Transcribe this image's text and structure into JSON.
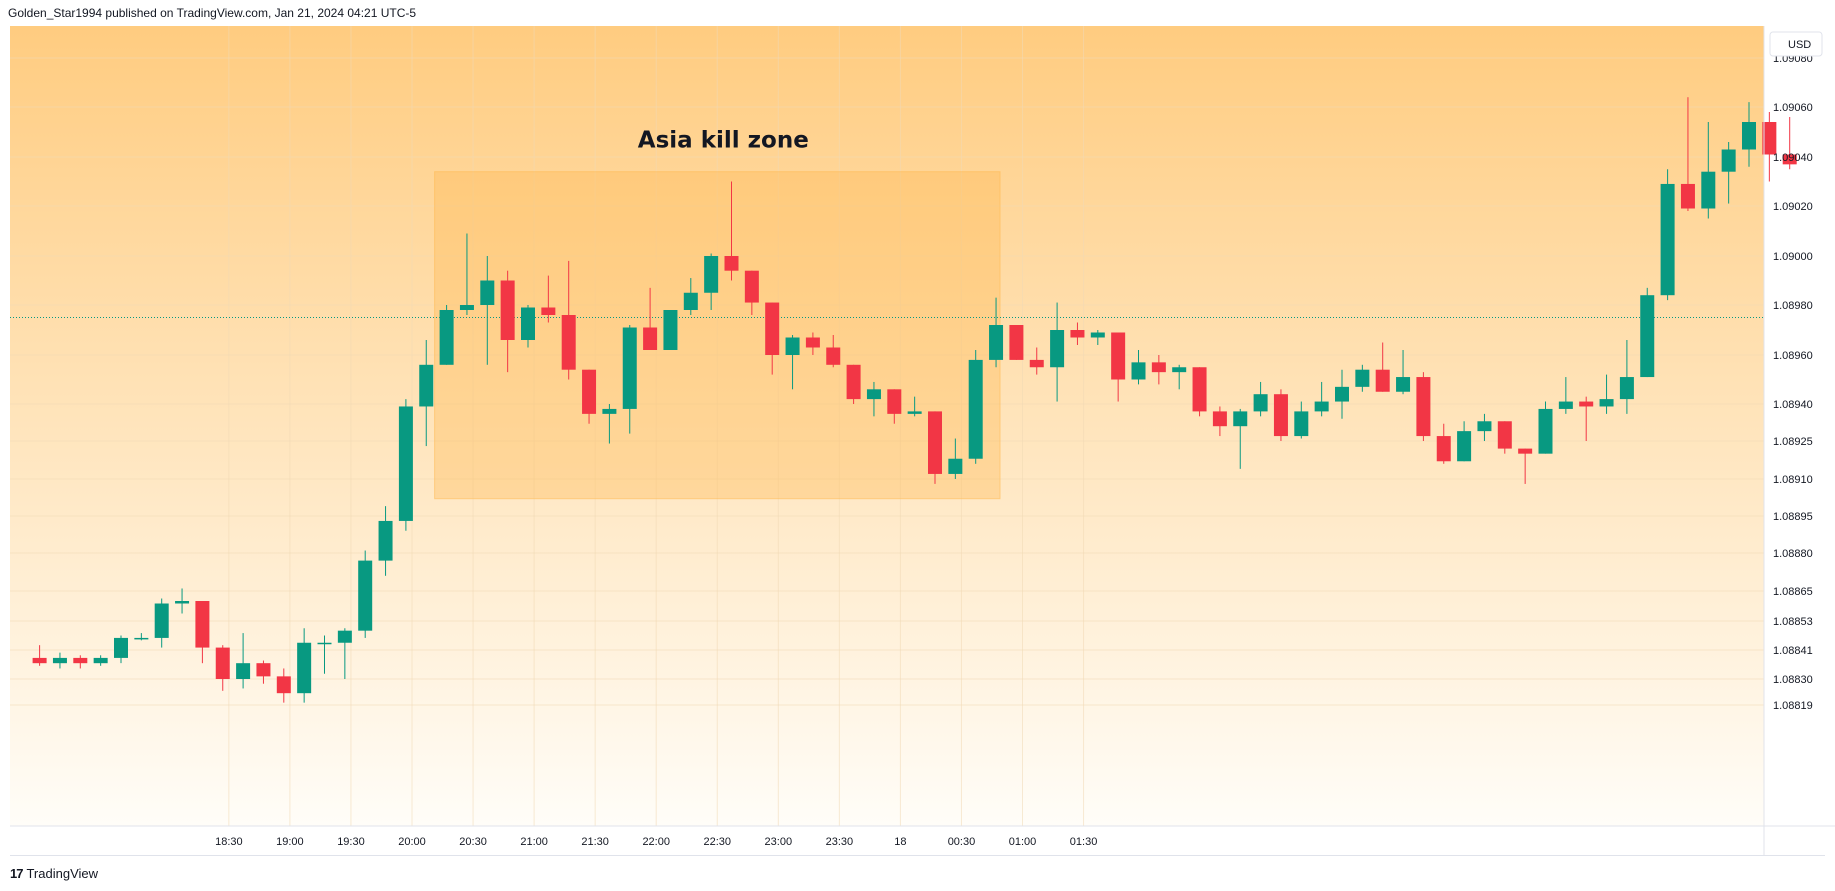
{
  "header": {
    "text": "Golden_Star1994 published on TradingView.com, Jan 21, 2024 04:21 UTC-5"
  },
  "footer": {
    "logo": "17",
    "brand": "TradingView"
  },
  "colors": {
    "up": "#089981",
    "down": "#f23645",
    "zone": "#ffb74d",
    "bg_top": "#ffcc80",
    "bg_bottom": "#fffdf8"
  },
  "chart_data": {
    "type": "candlestick",
    "title": "",
    "currency": "USD",
    "annotation": {
      "text": "Asia kill zone",
      "zone_start": 1,
      "zone_end": 28,
      "price_high": 1.09034,
      "price_low": 1.08902
    },
    "reference_line": 1.08975,
    "y_ticks": [
      "1.09080",
      "1.09060",
      "1.09040",
      "1.09020",
      "1.09000",
      "1.08980",
      "1.08960",
      "1.08940",
      "1.08925",
      "1.08910",
      "1.08895",
      "1.08880",
      "1.08865",
      "1.08853",
      "1.08841",
      "1.08830",
      "1.08819"
    ],
    "x_ticks": [
      {
        "label": "18:30",
        "i": -9.7
      },
      {
        "label": "19:00",
        "i": -6.7
      },
      {
        "label": "19:30",
        "i": -3.7
      },
      {
        "label": "20:00",
        "i": -0.7
      },
      {
        "label": "20:30",
        "i": 2.3
      },
      {
        "label": "21:00",
        "i": 5.3
      },
      {
        "label": "21:30",
        "i": 8.3
      },
      {
        "label": "22:00",
        "i": 11.3
      },
      {
        "label": "22:30",
        "i": 14.3
      },
      {
        "label": "23:00",
        "i": 17.3
      },
      {
        "label": "23:30",
        "i": 20.3
      },
      {
        "label": "18",
        "i": 23.3
      },
      {
        "label": "00:30",
        "i": 26.3
      },
      {
        "label": "01:00",
        "i": 29.3
      },
      {
        "label": "01:30",
        "i": 32.3
      }
    ],
    "candles": [
      {
        "o": 1.08838,
        "h": 1.08843,
        "l": 1.08835,
        "c": 1.08836
      },
      {
        "o": 1.08836,
        "h": 1.0884,
        "l": 1.08834,
        "c": 1.08838
      },
      {
        "o": 1.08838,
        "h": 1.08839,
        "l": 1.08834,
        "c": 1.08836
      },
      {
        "o": 1.08836,
        "h": 1.08839,
        "l": 1.08835,
        "c": 1.08838
      },
      {
        "o": 1.08838,
        "h": 1.08847,
        "l": 1.08836,
        "c": 1.08846
      },
      {
        "o": 1.08846,
        "h": 1.08848,
        "l": 1.08845,
        "c": 1.08846
      },
      {
        "o": 1.08846,
        "h": 1.08862,
        "l": 1.08842,
        "c": 1.0886
      },
      {
        "o": 1.0886,
        "h": 1.08866,
        "l": 1.08856,
        "c": 1.08861
      },
      {
        "o": 1.08861,
        "h": 1.08861,
        "l": 1.08836,
        "c": 1.08842
      },
      {
        "o": 1.08842,
        "h": 1.08843,
        "l": 1.08825,
        "c": 1.0883
      },
      {
        "o": 1.0883,
        "h": 1.08848,
        "l": 1.08826,
        "c": 1.08836
      },
      {
        "o": 1.08836,
        "h": 1.08837,
        "l": 1.08828,
        "c": 1.08831
      },
      {
        "o": 1.08831,
        "h": 1.08834,
        "l": 1.0882,
        "c": 1.08824
      },
      {
        "o": 1.08824,
        "h": 1.0885,
        "l": 1.0882,
        "c": 1.08844
      },
      {
        "o": 1.08844,
        "h": 1.08847,
        "l": 1.08832,
        "c": 1.08844
      },
      {
        "o": 1.08844,
        "h": 1.0885,
        "l": 1.0883,
        "c": 1.08849
      },
      {
        "o": 1.08849,
        "h": 1.08881,
        "l": 1.08846,
        "c": 1.08877
      },
      {
        "o": 1.08877,
        "h": 1.08899,
        "l": 1.08871,
        "c": 1.08893
      },
      {
        "o": 1.08893,
        "h": 1.08942,
        "l": 1.08889,
        "c": 1.08939
      },
      {
        "o": 1.08939,
        "h": 1.08966,
        "l": 1.08923,
        "c": 1.08956
      },
      {
        "o": 1.08956,
        "h": 1.0898,
        "l": 1.08956,
        "c": 1.08978
      },
      {
        "o": 1.08978,
        "h": 1.09009,
        "l": 1.08976,
        "c": 1.0898
      },
      {
        "o": 1.0898,
        "h": 1.09,
        "l": 1.08956,
        "c": 1.0899
      },
      {
        "o": 1.0899,
        "h": 1.08994,
        "l": 1.08953,
        "c": 1.08966
      },
      {
        "o": 1.08966,
        "h": 1.0898,
        "l": 1.08963,
        "c": 1.08979
      },
      {
        "o": 1.08979,
        "h": 1.08992,
        "l": 1.08973,
        "c": 1.08976
      },
      {
        "o": 1.08976,
        "h": 1.08998,
        "l": 1.0895,
        "c": 1.08954
      },
      {
        "o": 1.08954,
        "h": 1.08954,
        "l": 1.08932,
        "c": 1.08936
      },
      {
        "o": 1.08936,
        "h": 1.0894,
        "l": 1.08924,
        "c": 1.08938
      },
      {
        "o": 1.08938,
        "h": 1.08972,
        "l": 1.08928,
        "c": 1.08971
      },
      {
        "o": 1.08971,
        "h": 1.08987,
        "l": 1.08962,
        "c": 1.08962
      },
      {
        "o": 1.08962,
        "h": 1.08978,
        "l": 1.08962,
        "c": 1.08978
      },
      {
        "o": 1.08978,
        "h": 1.08991,
        "l": 1.08976,
        "c": 1.08985
      },
      {
        "o": 1.08985,
        "h": 1.09001,
        "l": 1.08978,
        "c": 1.09
      },
      {
        "o": 1.09,
        "h": 1.0903,
        "l": 1.0899,
        "c": 1.08994
      },
      {
        "o": 1.08994,
        "h": 1.08994,
        "l": 1.08976,
        "c": 1.08981
      },
      {
        "o": 1.08981,
        "h": 1.08981,
        "l": 1.08952,
        "c": 1.0896
      },
      {
        "o": 1.0896,
        "h": 1.08968,
        "l": 1.08946,
        "c": 1.08967
      },
      {
        "o": 1.08967,
        "h": 1.08969,
        "l": 1.0896,
        "c": 1.08963
      },
      {
        "o": 1.08963,
        "h": 1.08968,
        "l": 1.08955,
        "c": 1.08956
      },
      {
        "o": 1.08956,
        "h": 1.08956,
        "l": 1.0894,
        "c": 1.08942
      },
      {
        "o": 1.08942,
        "h": 1.08949,
        "l": 1.08935,
        "c": 1.08946
      },
      {
        "o": 1.08946,
        "h": 1.08946,
        "l": 1.08932,
        "c": 1.08936
      },
      {
        "o": 1.08936,
        "h": 1.08943,
        "l": 1.08935,
        "c": 1.08937
      },
      {
        "o": 1.08937,
        "h": 1.08937,
        "l": 1.08908,
        "c": 1.08912
      },
      {
        "o": 1.08912,
        "h": 1.08926,
        "l": 1.0891,
        "c": 1.08918
      },
      {
        "o": 1.08918,
        "h": 1.08962,
        "l": 1.08916,
        "c": 1.08958
      },
      {
        "o": 1.08958,
        "h": 1.08983,
        "l": 1.08955,
        "c": 1.08972
      },
      {
        "o": 1.08972,
        "h": 1.08972,
        "l": 1.08958,
        "c": 1.08958
      },
      {
        "o": 1.08958,
        "h": 1.08963,
        "l": 1.08952,
        "c": 1.08955
      },
      {
        "o": 1.08955,
        "h": 1.08981,
        "l": 1.08941,
        "c": 1.0897
      },
      {
        "o": 1.0897,
        "h": 1.08973,
        "l": 1.08964,
        "c": 1.08967
      },
      {
        "o": 1.08967,
        "h": 1.0897,
        "l": 1.08964,
        "c": 1.08969
      },
      {
        "o": 1.08969,
        "h": 1.08969,
        "l": 1.08941,
        "c": 1.0895
      },
      {
        "o": 1.0895,
        "h": 1.08962,
        "l": 1.08948,
        "c": 1.08957
      },
      {
        "o": 1.08957,
        "h": 1.0896,
        "l": 1.08948,
        "c": 1.08953
      },
      {
        "o": 1.08953,
        "h": 1.08956,
        "l": 1.08946,
        "c": 1.08955
      },
      {
        "o": 1.08955,
        "h": 1.08955,
        "l": 1.08935,
        "c": 1.08937
      },
      {
        "o": 1.08937,
        "h": 1.08939,
        "l": 1.08927,
        "c": 1.08931
      },
      {
        "o": 1.08931,
        "h": 1.08938,
        "l": 1.08914,
        "c": 1.08937
      },
      {
        "o": 1.08937,
        "h": 1.08949,
        "l": 1.08935,
        "c": 1.08944
      },
      {
        "o": 1.08944,
        "h": 1.08946,
        "l": 1.08925,
        "c": 1.08927
      },
      {
        "o": 1.08927,
        "h": 1.08941,
        "l": 1.08926,
        "c": 1.08937
      },
      {
        "o": 1.08937,
        "h": 1.08949,
        "l": 1.08935,
        "c": 1.08941
      },
      {
        "o": 1.08941,
        "h": 1.08954,
        "l": 1.08934,
        "c": 1.08947
      },
      {
        "o": 1.08947,
        "h": 1.08956,
        "l": 1.08945,
        "c": 1.08954
      },
      {
        "o": 1.08954,
        "h": 1.08965,
        "l": 1.08945,
        "c": 1.08945
      },
      {
        "o": 1.08945,
        "h": 1.08962,
        "l": 1.08944,
        "c": 1.08951
      },
      {
        "o": 1.08951,
        "h": 1.08953,
        "l": 1.08925,
        "c": 1.08927
      },
      {
        "o": 1.08927,
        "h": 1.08932,
        "l": 1.08916,
        "c": 1.08917
      },
      {
        "o": 1.08917,
        "h": 1.08933,
        "l": 1.08917,
        "c": 1.08929
      },
      {
        "o": 1.08929,
        "h": 1.08936,
        "l": 1.08925,
        "c": 1.08933
      },
      {
        "o": 1.08933,
        "h": 1.08933,
        "l": 1.0892,
        "c": 1.08922
      },
      {
        "o": 1.08922,
        "h": 1.08922,
        "l": 1.08908,
        "c": 1.0892
      },
      {
        "o": 1.0892,
        "h": 1.08941,
        "l": 1.0892,
        "c": 1.08938
      },
      {
        "o": 1.08938,
        "h": 1.08951,
        "l": 1.08936,
        "c": 1.08941
      },
      {
        "o": 1.08941,
        "h": 1.08943,
        "l": 1.08925,
        "c": 1.08939
      },
      {
        "o": 1.08939,
        "h": 1.08952,
        "l": 1.08936,
        "c": 1.08942
      },
      {
        "o": 1.08942,
        "h": 1.08966,
        "l": 1.08936,
        "c": 1.08951
      },
      {
        "o": 1.08951,
        "h": 1.08987,
        "l": 1.08951,
        "c": 1.08984
      },
      {
        "o": 1.08984,
        "h": 1.09035,
        "l": 1.08982,
        "c": 1.09029
      },
      {
        "o": 1.09029,
        "h": 1.09064,
        "l": 1.09018,
        "c": 1.09019
      },
      {
        "o": 1.09019,
        "h": 1.09054,
        "l": 1.09015,
        "c": 1.09034
      },
      {
        "o": 1.09034,
        "h": 1.09046,
        "l": 1.09021,
        "c": 1.09043
      },
      {
        "o": 1.09043,
        "h": 1.09062,
        "l": 1.09036,
        "c": 1.09054
      },
      {
        "o": 1.09054,
        "h": 1.09058,
        "l": 1.0903,
        "c": 1.09041
      },
      {
        "o": 1.09041,
        "h": 1.09056,
        "l": 1.09035,
        "c": 1.09037
      }
    ]
  }
}
